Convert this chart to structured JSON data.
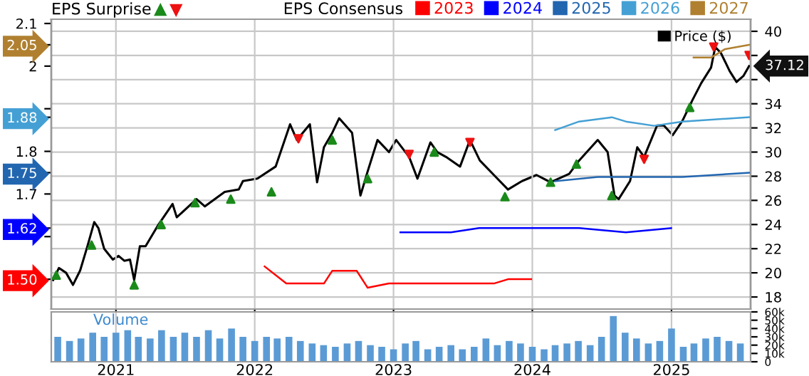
{
  "chart_data": [
    {
      "type": "line",
      "legend_title": "EPS Consensus",
      "legend": "top",
      "grid": true,
      "tick_labels": "y",
      "annotations": [
        "EPS Surprise"
      ],
      "xlim": [
        "2020-07-15",
        "2025-07-28"
      ],
      "xticks": [
        {
          "value": "2021",
          "label": null
        },
        {
          "value": "2022",
          "label": null
        },
        {
          "value": "2023",
          "label": null
        },
        {
          "value": "2024",
          "label": null
        },
        {
          "value": "2025",
          "label": null
        }
      ],
      "ylim": [
        1.43,
        2.11
      ],
      "yticks": [
        {
          "value": 1.5,
          "label": "1.50"
        },
        {
          "value": 1.6,
          "label": null
        },
        1.62,
        1.7,
        1.75,
        1.8,
        1.88,
        {
          "value": 1.9,
          "label": null
        },
        2,
        2.05,
        2.1
      ],
      "y2lim": [
        17,
        41
      ],
      "y2ticks": [
        18,
        20,
        22,
        24,
        26,
        28,
        30,
        32,
        34,
        {
          "value": 36,
          "label": null
        },
        {
          "value": 38,
          "label": null
        },
        40
      ],
      "series": [
        {
          "name": "2023",
          "color": "#ff0000",
          "x": [
            "2022-01-27",
            "2022-03-25",
            "2022-05-15",
            "2022-07-02",
            "2022-07-24",
            "2022-09-26",
            "2022-10-25",
            "2022-12-20",
            "2023-02-22",
            "2023-05-19",
            "2023-09-22",
            "2023-10-29",
            "2023-12-29"
          ],
          "values": [
            1.53,
            1.49,
            1.49,
            1.49,
            1.52,
            1.52,
            1.48,
            1.49,
            1.49,
            1.49,
            1.49,
            1.5,
            1.5
          ]
        },
        {
          "name": "2024",
          "color": "#0000ff",
          "x": [
            "2023-01-19",
            "2023-02-13",
            "2023-03-21",
            "2023-06-01",
            "2023-08-14",
            "2023-12-29",
            "2024-03-28",
            "2024-05-03",
            "2024-09-03",
            "2024-12-31"
          ],
          "values": [
            1.61,
            1.61,
            1.61,
            1.61,
            1.62,
            1.62,
            1.62,
            1.62,
            1.61,
            1.62
          ]
        },
        {
          "name": "2025",
          "color": "#2266b0",
          "x": [
            "2024-03-01",
            "2024-06-21",
            "2024-09-24",
            "2025-01-30",
            "2025-07-24"
          ],
          "values": [
            1.73,
            1.74,
            1.74,
            1.74,
            1.75
          ]
        },
        {
          "name": "2026",
          "color": "#44a0d4",
          "x": [
            "2024-03-01",
            "2024-05-03",
            "2024-07-28",
            "2024-09-03",
            "2024-11-16",
            "2025-01-30",
            "2025-07-24"
          ],
          "values": [
            1.85,
            1.87,
            1.88,
            1.87,
            1.86,
            1.87,
            1.88
          ]
        },
        {
          "name": "2027",
          "color": "#b08030",
          "x": [
            "2025-02-28",
            "2025-04-15",
            "2025-05-22",
            "2025-07-24"
          ],
          "values": [
            2.02,
            2.02,
            2.04,
            2.05
          ]
        },
        {
          "name": "Price ($)",
          "color": "#000000",
          "axis": "y2",
          "x": [
            "2020-07-20",
            "2020-08-04",
            "2020-08-23",
            "2020-09-10",
            "2020-09-29",
            "2020-10-18",
            "2020-11-05",
            "2020-11-16",
            "2020-12-01",
            "2020-12-24",
            "2021-01-08",
            "2021-01-23",
            "2021-02-07",
            "2021-02-18",
            "2021-03-05",
            "2021-03-20",
            "2021-04-23",
            "2021-05-30",
            "2021-06-10",
            "2021-08-01",
            "2021-08-23",
            "2021-10-14",
            "2021-11-20",
            "2021-12-01",
            "2022-01-08",
            "2022-02-25",
            "2022-04-04",
            "2022-04-22",
            "2022-05-26",
            "2022-06-14",
            "2022-07-02",
            "2022-07-24",
            "2022-08-11",
            "2022-09-14",
            "2022-10-06",
            "2022-10-25",
            "2022-11-20",
            "2022-12-20",
            "2023-01-08",
            "2023-02-11",
            "2023-03-05",
            "2023-04-08",
            "2023-04-26",
            "2023-05-19",
            "2023-06-25",
            "2023-07-21",
            "2023-08-16",
            "2023-09-22",
            "2023-10-29",
            "2023-12-05",
            "2024-01-12",
            "2024-02-18",
            "2024-04-07",
            "2024-05-03",
            "2024-06-21",
            "2024-07-17",
            "2024-08-04",
            "2024-08-15",
            "2024-09-14",
            "2024-10-03",
            "2024-10-21",
            "2024-11-24",
            "2024-12-12",
            "2025-01-04",
            "2025-01-30",
            "2025-02-25",
            "2025-03-20",
            "2025-04-15",
            "2025-04-26",
            "2025-05-11",
            "2025-06-03",
            "2025-06-21",
            "2025-07-09",
            "2025-07-24"
          ],
          "values": [
            19.4,
            20.4,
            20.0,
            19.0,
            20.2,
            22.2,
            24.2,
            23.7,
            22.0,
            21.1,
            21.4,
            21.0,
            21.1,
            19.4,
            22.2,
            22.2,
            24.0,
            25.7,
            24.6,
            26.1,
            25.5,
            26.7,
            26.9,
            27.6,
            27.8,
            28.8,
            32.3,
            31.0,
            32.3,
            27.5,
            30.4,
            31.6,
            32.8,
            31.6,
            26.4,
            28.4,
            31.0,
            30.0,
            31.0,
            29.6,
            27.8,
            30.8,
            30.0,
            29.6,
            28.8,
            31.0,
            29.3,
            28.1,
            26.9,
            27.6,
            28.1,
            27.5,
            28.2,
            29.3,
            31.0,
            30.0,
            26.4,
            26.1,
            27.6,
            30.4,
            29.6,
            32.2,
            32.2,
            31.4,
            32.6,
            34.3,
            35.7,
            37.0,
            38.7,
            38.2,
            36.7,
            35.8,
            36.3,
            37.12
          ],
          "value_labels": [
            null,
            null,
            null,
            null,
            null,
            null,
            null,
            null,
            null,
            null,
            null,
            null,
            null,
            null,
            null,
            null,
            null,
            null,
            null,
            null,
            null,
            null,
            null,
            null,
            null,
            null,
            null,
            null,
            null,
            null,
            null,
            null,
            null,
            null,
            null,
            null,
            null,
            null,
            null,
            null,
            null,
            null,
            null,
            null,
            null,
            null,
            null,
            null,
            null,
            null,
            null,
            null,
            null,
            null,
            null,
            null,
            null,
            null,
            null,
            null,
            null,
            null,
            null,
            null,
            null,
            null,
            null,
            null,
            null,
            null,
            null,
            null,
            null,
            "37.12"
          ]
        },
        {
          "type": "scatter",
          "color": "#1a8a1a",
          "marker": "triangle",
          "axis": "y2",
          "x": [
            "2020-07-28",
            "2020-10-29",
            "2021-02-18",
            "2021-04-30",
            "2021-07-28",
            "2021-10-30",
            "2022-02-14",
            "2022-07-24",
            "2022-10-25",
            "2023-04-18",
            "2023-10-21",
            "2024-02-18",
            "2024-04-26",
            "2024-07-28",
            "2025-02-18"
          ],
          "values": [
            19.8,
            22.3,
            19.0,
            24.0,
            25.8,
            26.1,
            26.7,
            31.0,
            27.8,
            30.0,
            26.3,
            27.5,
            29.0,
            26.4,
            33.7
          ]
        },
        {
          "type": "scatter",
          "color": "#ee1111",
          "marker": "triangle",
          "axis": "y2",
          "x": [
            "2022-04-26",
            "2023-02-11",
            "2023-07-21",
            "2024-10-21",
            "2025-04-22",
            "2025-07-24"
          ],
          "values": [
            31.1,
            29.8,
            30.8,
            29.4,
            38.7,
            38.0
          ]
        }
      ]
    },
    {
      "type": "bar",
      "title": "Volume",
      "grid": "x",
      "color": "#5b9bd5",
      "xlim": [
        "2020-07-15",
        "2025-07-28"
      ],
      "xticks": [
        "2021",
        "2022",
        "2023",
        "2024",
        "2025"
      ],
      "ylim": [
        0,
        60000
      ],
      "yticks": [
        0,
        {
          "value": 10000,
          "label": "10k"
        },
        {
          "value": 20000,
          "label": "20k"
        },
        {
          "value": 30000,
          "label": "30k"
        },
        {
          "value": 40000,
          "label": "40k"
        },
        {
          "value": 50000,
          "label": "50k"
        },
        {
          "value": 60000,
          "label": "60k"
        }
      ],
      "x": [
        "2020-08-01",
        "2020-09-01",
        "2020-10-01",
        "2020-11-01",
        "2020-12-01",
        "2021-01-01",
        "2021-02-01",
        "2021-03-01",
        "2021-04-01",
        "2021-05-01",
        "2021-06-01",
        "2021-07-01",
        "2021-08-01",
        "2021-09-01",
        "2021-10-01",
        "2021-11-01",
        "2021-12-01",
        "2022-01-01",
        "2022-02-01",
        "2022-03-01",
        "2022-04-01",
        "2022-05-01",
        "2022-06-01",
        "2022-07-01",
        "2022-08-01",
        "2022-09-01",
        "2022-10-01",
        "2022-11-01",
        "2022-12-01",
        "2023-01-01",
        "2023-02-01",
        "2023-03-01",
        "2023-04-01",
        "2023-05-01",
        "2023-06-01",
        "2023-07-01",
        "2023-08-01",
        "2023-09-01",
        "2023-10-01",
        "2023-11-01",
        "2023-12-01",
        "2024-01-01",
        "2024-02-01",
        "2024-03-01",
        "2024-04-01",
        "2024-05-01",
        "2024-06-01",
        "2024-07-01",
        "2024-08-01",
        "2024-09-01",
        "2024-10-01",
        "2024-11-01",
        "2024-12-01",
        "2025-01-01",
        "2025-02-01",
        "2025-03-01",
        "2025-04-01",
        "2025-05-01",
        "2025-06-01",
        "2025-07-01"
      ],
      "values": [
        30000,
        25000,
        28000,
        35000,
        30000,
        35000,
        38000,
        30000,
        28000,
        38000,
        30000,
        35000,
        30000,
        38000,
        28000,
        40000,
        30000,
        25000,
        30000,
        28000,
        30000,
        25000,
        22000,
        20000,
        18000,
        22000,
        25000,
        20000,
        18000,
        15000,
        22000,
        25000,
        15000,
        18000,
        20000,
        15000,
        18000,
        28000,
        20000,
        25000,
        22000,
        18000,
        15000,
        20000,
        22000,
        25000,
        20000,
        30000,
        55000,
        35000,
        28000,
        22000,
        25000,
        40000,
        18000,
        22000,
        28000,
        30000,
        25000,
        22000
      ]
    }
  ]
}
